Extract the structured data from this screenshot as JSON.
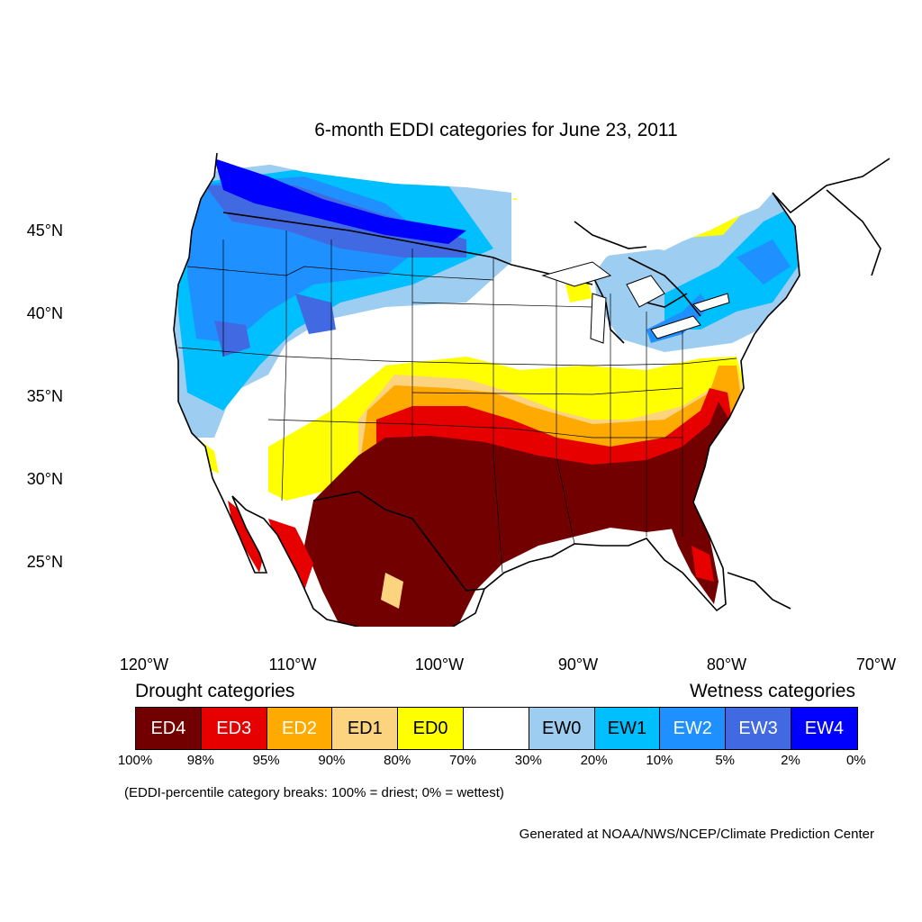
{
  "title": "6-month EDDI categories for June 23, 2011",
  "map": {
    "lat_labels": [
      "45°N",
      "40°N",
      "35°N",
      "30°N",
      "25°N"
    ],
    "lon_labels": [
      "120°W",
      "110°W",
      "100°W",
      "90°W",
      "80°W",
      "70°W"
    ]
  },
  "legend": {
    "drought_heading": "Drought categories",
    "wetness_heading": "Wetness categories",
    "categories": [
      {
        "label": "ED4",
        "color": "#730000",
        "text_color": "#ffffff"
      },
      {
        "label": "ED3",
        "color": "#e60000",
        "text_color": "#ffffff"
      },
      {
        "label": "ED2",
        "color": "#ffaa00",
        "text_color": "#ffffff"
      },
      {
        "label": "ED1",
        "color": "#fcd37f",
        "text_color": "#000000"
      },
      {
        "label": "ED0",
        "color": "#ffff00",
        "text_color": "#000000"
      },
      {
        "label": "",
        "color": "#ffffff",
        "text_color": "#000000"
      },
      {
        "label": "EW0",
        "color": "#9dcdf0",
        "text_color": "#000000"
      },
      {
        "label": "EW1",
        "color": "#00bfff",
        "text_color": "#000000"
      },
      {
        "label": "EW2",
        "color": "#1e90ff",
        "text_color": "#ffffff"
      },
      {
        "label": "EW3",
        "color": "#4169e1",
        "text_color": "#ffffff"
      },
      {
        "label": "EW4",
        "color": "#0000ff",
        "text_color": "#ffffff"
      }
    ],
    "breaks": [
      "100%",
      "98%",
      "95%",
      "90%",
      "80%",
      "70%",
      "30%",
      "20%",
      "10%",
      "5%",
      "2%",
      "0%"
    ]
  },
  "note": "(EDDI-percentile category breaks: 100% = driest; 0% = wettest)",
  "credit": "Generated at NOAA/NWS/NCEP/Climate Prediction Center"
}
